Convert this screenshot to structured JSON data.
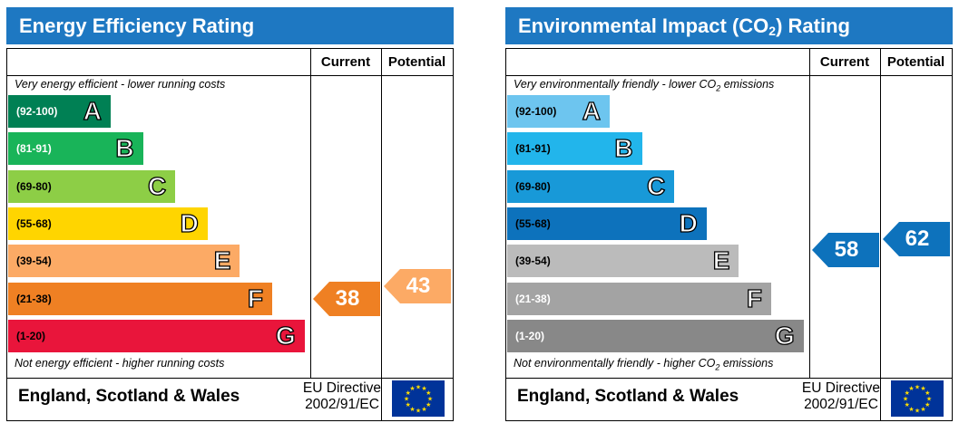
{
  "chart_data": [
    {
      "type": "bar",
      "title": "Energy Efficiency Rating",
      "title_color": "#1E78C2",
      "column_headers": [
        "Current",
        "Potential"
      ],
      "top_note": "Very energy efficient - lower running costs",
      "bottom_note": "Not energy efficient - higher running costs",
      "bands": [
        {
          "range": "(92-100)",
          "letter": "A",
          "color": "#008054",
          "text_color": "#ffffff"
        },
        {
          "range": "(81-91)",
          "letter": "B",
          "color": "#19B459",
          "text_color": "#ffffff"
        },
        {
          "range": "(69-80)",
          "letter": "C",
          "color": "#8DCE46",
          "text_color": "#000000"
        },
        {
          "range": "(55-68)",
          "letter": "D",
          "color": "#FFD500",
          "text_color": "#000000"
        },
        {
          "range": "(39-54)",
          "letter": "E",
          "color": "#FCAA65",
          "text_color": "#000000"
        },
        {
          "range": "(21-38)",
          "letter": "F",
          "color": "#EF8023",
          "text_color": "#000000"
        },
        {
          "range": "(1-20)",
          "letter": "G",
          "color": "#E9153B",
          "text_color": "#000000"
        }
      ],
      "current": {
        "value": 38,
        "color": "#EF8023"
      },
      "potential": {
        "value": 43,
        "color": "#FCAA65"
      },
      "footer_label": "England, Scotland & Wales",
      "directive_line1": "EU Directive",
      "directive_line2": "2002/91/EC"
    },
    {
      "type": "bar",
      "title": "Environmental Impact (CO",
      "title_sub": "2",
      "title_tail": ") Rating",
      "title_color": "#1E78C2",
      "column_headers": [
        "Current",
        "Potential"
      ],
      "top_note": "Very environmentally friendly - lower CO",
      "top_note_sub": "2",
      "top_note_tail": " emissions",
      "bottom_note": "Not environmentally friendly - higher CO",
      "bottom_note_sub": "2",
      "bottom_note_tail": " emissions",
      "bands": [
        {
          "range": "(92-100)",
          "letter": "A",
          "color": "#6DC5EF",
          "text_color": "#000000"
        },
        {
          "range": "(81-91)",
          "letter": "B",
          "color": "#22B5EB",
          "text_color": "#000000"
        },
        {
          "range": "(69-80)",
          "letter": "C",
          "color": "#1899D8",
          "text_color": "#000000"
        },
        {
          "range": "(55-68)",
          "letter": "D",
          "color": "#0D72BC",
          "text_color": "#000000"
        },
        {
          "range": "(39-54)",
          "letter": "E",
          "color": "#BBBBBB",
          "text_color": "#000000"
        },
        {
          "range": "(21-38)",
          "letter": "F",
          "color": "#A3A3A3",
          "text_color": "#ffffff"
        },
        {
          "range": "(1-20)",
          "letter": "G",
          "color": "#888888",
          "text_color": "#ffffff"
        }
      ],
      "current": {
        "value": 58,
        "color": "#0D72BC"
      },
      "potential": {
        "value": 62,
        "color": "#0D72BC"
      },
      "footer_label": "England, Scotland & Wales",
      "directive_line1": "EU Directive",
      "directive_line2": "2002/91/EC"
    }
  ]
}
